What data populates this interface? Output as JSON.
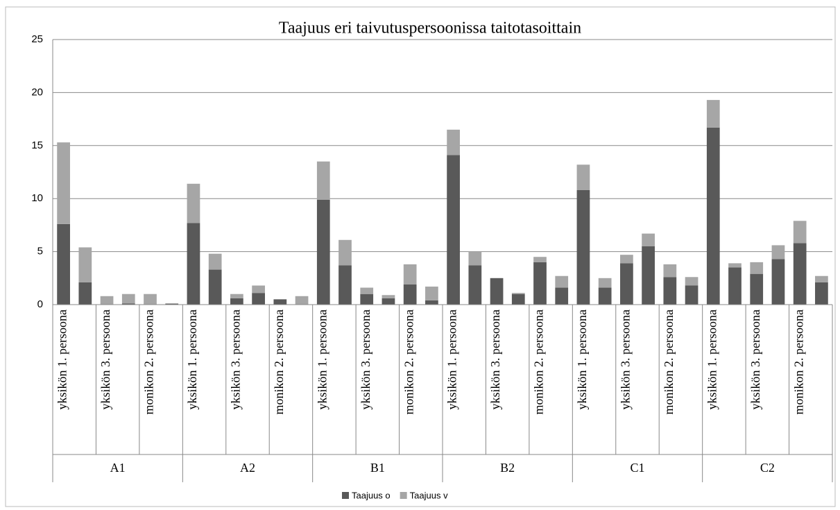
{
  "chart_data": {
    "type": "stacked_bar",
    "title": "Taajuus eri taivutuspersoonissa taitotasoittain",
    "groups": [
      "A1",
      "A2",
      "B1",
      "B2",
      "C1",
      "C2"
    ],
    "categories": [
      "yksikön 1. persoona",
      null,
      "yksikön 3. persoona",
      null,
      "monikon 2. persoona",
      null,
      "yksikön 1. persoona",
      null,
      "yksikön 3. persoona",
      null,
      "monikon 2. persoona",
      null,
      "yksikön 1. persoona",
      null,
      "yksikön 3. persoona",
      null,
      "monikon 2. persoona",
      null,
      "yksikön 1. persoona",
      null,
      "yksikön 3. persoona",
      null,
      "monikon 2. persoona",
      null,
      "yksikön 1. persoona",
      null,
      "yksikön 3. persoona",
      null,
      "monikon 2. persoona",
      null,
      "yksikön 1. persoona",
      null,
      "yksikön 3. persoona",
      null,
      "monikon 2. persoona",
      null
    ],
    "series": [
      {
        "name": "Taajuus o",
        "color": "#595959",
        "values": [
          7.6,
          2.1,
          0,
          0.1,
          0,
          0.1,
          7.7,
          3.3,
          0.6,
          1.1,
          0.5,
          0,
          9.9,
          3.7,
          1.0,
          0.6,
          1.9,
          0.4,
          14.1,
          3.7,
          2.5,
          1.0,
          4.0,
          1.6,
          10.8,
          1.6,
          3.9,
          5.5,
          2.6,
          1.8,
          16.7,
          3.5,
          2.9,
          4.3,
          5.8,
          2.1
        ]
      },
      {
        "name": "Taajuus v",
        "color": "#a6a6a6",
        "values": [
          7.7,
          3.3,
          0.8,
          0.9,
          1.0,
          0,
          3.7,
          1.5,
          0.4,
          0.7,
          0,
          0.8,
          3.6,
          2.4,
          0.6,
          0.3,
          1.9,
          1.3,
          2.4,
          1.3,
          0,
          0.1,
          0.5,
          1.1,
          2.4,
          0.9,
          0.8,
          1.2,
          1.2,
          0.8,
          2.6,
          0.4,
          1.1,
          1.3,
          2.1,
          0.6
        ]
      }
    ],
    "ylim": [
      0,
      25
    ],
    "yticks": [
      0,
      5,
      10,
      15,
      20,
      25
    ],
    "grid": true,
    "legend": "bottom"
  }
}
